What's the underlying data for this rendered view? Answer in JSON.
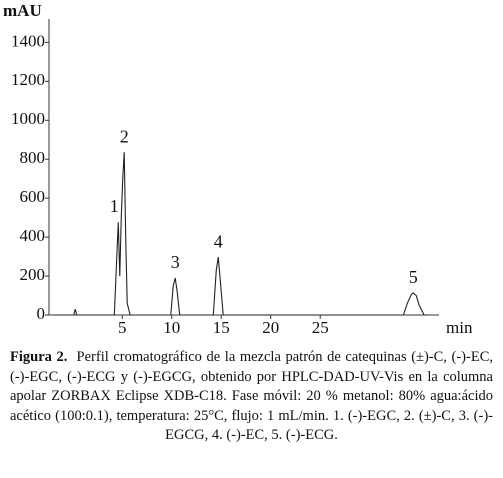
{
  "chart_data": {
    "type": "line",
    "y_label": "mAU",
    "x_label": "min",
    "xlim": [
      -2.4,
      37
    ],
    "xticks": [
      5,
      10,
      15,
      20,
      25
    ],
    "ylim": [
      0,
      1520
    ],
    "yticks": [
      0,
      200,
      400,
      600,
      800,
      1000,
      1200,
      1400
    ],
    "x": [
      -2.0,
      0.1,
      0.25,
      0.4,
      4.2,
      4.45,
      4.6,
      4.75,
      4.9,
      5.05,
      5.2,
      5.35,
      5.5,
      5.8,
      9.9,
      10.15,
      10.35,
      10.55,
      10.8,
      14.2,
      14.5,
      14.7,
      14.9,
      15.2,
      33.4,
      33.8,
      34.2,
      34.4,
      34.7,
      35.0,
      35.5,
      36.0
    ],
    "series": [
      {
        "color": "#222222",
        "values": [
          0,
          0,
          30,
          0,
          0,
          300,
          477,
          200,
          500,
          700,
          836,
          400,
          60,
          0,
          0,
          150,
          190,
          120,
          0,
          0,
          230,
          297,
          180,
          0,
          0,
          60,
          105,
          113,
          100,
          50,
          0,
          0
        ]
      }
    ],
    "peaks": {
      "labels": [
        "1",
        "2",
        "3",
        "4",
        "5"
      ],
      "x": [
        4.6,
        5.2,
        10.35,
        14.7,
        34.4
      ]
    },
    "caption": {
      "label": "Figura 2.",
      "text": "Perfil cromatográfico de la mezcla patrón de catequinas (±)-C, (-)-EC, (-)-EGC, (-)-ECG y (-)-EGCG, obtenido por HPLC-DAD-UV-Vis en la columna apolar ZORBAX Eclipse XDB-C18. Fase móvil: 20 % metanol: 80% agua:ácido acético (100:0.1), temperatura: 25°C, flujo: 1 mL/min. 1. (-)-EGC, 2. (±)-C, 3. (-)-EGCG, 4. (-)-EC, 5. (-)-ECG."
    }
  }
}
